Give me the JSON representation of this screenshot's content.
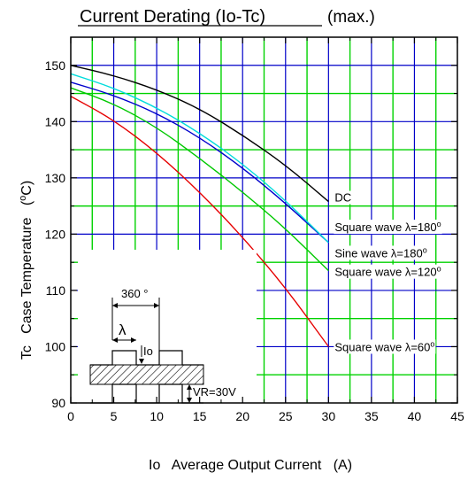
{
  "chart_data": {
    "type": "line",
    "title": "Current Derating  (Io-Tc)",
    "subtitle": "(max.)",
    "xlabel": "Io   Average Output Current   (A)",
    "ylabel": "Tc   Case Temperature   (°C)",
    "xlim": [
      0,
      45
    ],
    "ylim": [
      90,
      155
    ],
    "x_ticks": [
      0,
      5,
      10,
      15,
      20,
      25,
      30,
      35,
      40,
      45
    ],
    "y_ticks": [
      90,
      100,
      110,
      120,
      130,
      140,
      150
    ],
    "grid": true,
    "series": [
      {
        "name": "DC",
        "color": "#000000",
        "x": [
          0,
          5,
          10,
          15,
          20,
          25,
          30
        ],
        "y": [
          150,
          148.2,
          145.7,
          142.3,
          137.6,
          132.3,
          125.8
        ]
      },
      {
        "name": "Square wave λ=180°",
        "color": "#00dcdc",
        "x": [
          0,
          5,
          10,
          15,
          20,
          25,
          30
        ],
        "y": [
          148.5,
          146.0,
          142.5,
          138.0,
          132.5,
          126.0,
          118.5
        ]
      },
      {
        "name": "Sine wave λ=180°",
        "color": "#0000cc",
        "x": [
          0,
          5,
          10,
          15,
          20,
          25,
          30
        ],
        "y": [
          147.0,
          144.7,
          141.5,
          137.2,
          131.8,
          125.5,
          118.5
        ]
      },
      {
        "name": "Square wave λ=120°",
        "color": "#00c800",
        "x": [
          0,
          5,
          10,
          15,
          20,
          25,
          30
        ],
        "y": [
          146.0,
          143.2,
          139.0,
          133.5,
          127.5,
          121.0,
          113.5
        ]
      },
      {
        "name": "Square wave λ=60°",
        "color": "#e60000",
        "x": [
          0,
          5,
          10,
          15,
          20,
          25,
          30
        ],
        "y": [
          144.5,
          140.3,
          134.5,
          127.5,
          119.5,
          110.5,
          100.0
        ]
      }
    ],
    "annotations": [
      {
        "text": "DC",
        "x": 30,
        "y": 125.8
      },
      {
        "text": "Square wave λ=180°",
        "x": 30,
        "y": 120.2
      },
      {
        "text": "Sine wave λ=180°",
        "x": 30,
        "y": 117.0
      },
      {
        "text": "Square wave λ=120°",
        "x": 30,
        "y": 113.5
      },
      {
        "text": "Square wave λ=60°",
        "x": 30,
        "y": 100.0
      }
    ],
    "inset": {
      "period_label": "360 °",
      "conduction_label": "λ",
      "current_label": "Io",
      "voltage_label": "VR=30V"
    }
  }
}
